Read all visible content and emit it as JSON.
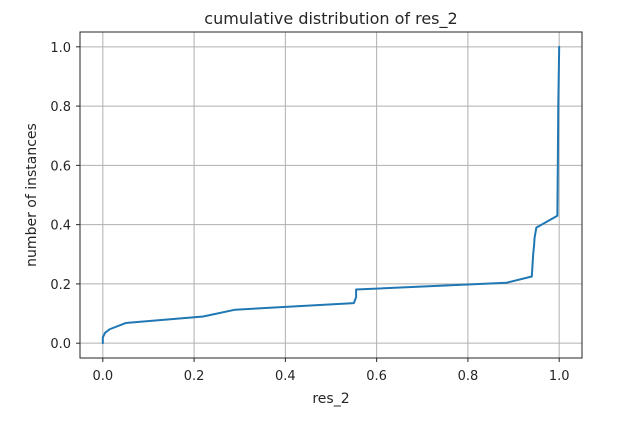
{
  "chart_data": {
    "type": "line",
    "title": "cumulative distribution of res_2",
    "xlabel": "res_2",
    "ylabel": "number of instances",
    "xlim": [
      -0.05,
      1.05
    ],
    "ylim": [
      -0.05,
      1.05
    ],
    "xticks": [
      0.0,
      0.2,
      0.4,
      0.6,
      0.8,
      1.0
    ],
    "xtick_labels": [
      "0.0",
      "0.2",
      "0.4",
      "0.6",
      "0.8",
      "1.0"
    ],
    "yticks": [
      0.0,
      0.2,
      0.4,
      0.6,
      0.8,
      1.0
    ],
    "ytick_labels": [
      "0.0",
      "0.2",
      "0.4",
      "0.6",
      "0.8",
      "1.0"
    ],
    "grid": true,
    "series": [
      {
        "color": "#1f77b4",
        "x": [
          0.0,
          0.0,
          0.005,
          0.015,
          0.05,
          0.22,
          0.29,
          0.55,
          0.555,
          0.555,
          0.885,
          0.94,
          0.943,
          0.945,
          0.946,
          0.95,
          0.996,
          0.997,
          0.998,
          1.0
        ],
        "y": [
          0.0,
          0.02,
          0.035,
          0.047,
          0.068,
          0.09,
          0.113,
          0.135,
          0.155,
          0.181,
          0.204,
          0.225,
          0.3,
          0.33,
          0.355,
          0.39,
          0.43,
          0.6,
          0.8,
          1.0
        ]
      }
    ]
  }
}
